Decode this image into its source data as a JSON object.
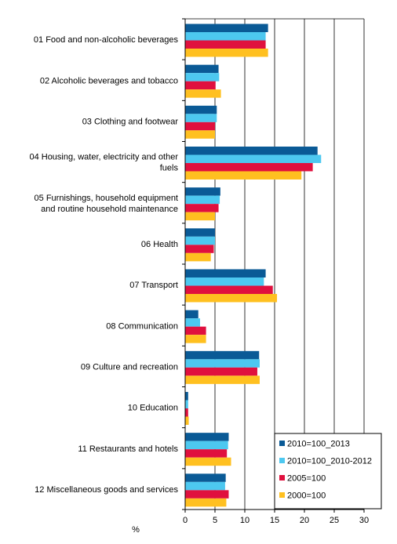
{
  "chart_data": {
    "type": "bar",
    "orientation": "horizontal",
    "title": "",
    "xlabel": "%",
    "ylabel": "",
    "xlim": [
      0,
      30
    ],
    "xticks": [
      "0",
      "5",
      "10",
      "15",
      "20",
      "25",
      "30"
    ],
    "grid": true,
    "legend_position": "bottom-right",
    "categories": [
      "01 Food and non-alcoholic beverages",
      "02 Alcoholic beverages and tobacco",
      "03 Clothing and footwear",
      "04 Housing, water, electricity and other fuels",
      "05 Furnishings, household equipment and routine household maintenance",
      "06 Health",
      "07 Transport",
      "08 Communication",
      "09 Culture and recreation",
      "10 Education",
      "11 Restaurants and hotels",
      "12 Miscellaneous goods and services"
    ],
    "category_lines": [
      [
        "01 Food and non-alcoholic beverages"
      ],
      [
        "02 Alcoholic beverages and tobacco"
      ],
      [
        "03 Clothing and footwear"
      ],
      [
        "04 Housing, water, electricity and other",
        "fuels"
      ],
      [
        "05 Furnishings, household equipment",
        "and routine household maintenance"
      ],
      [
        "06 Health"
      ],
      [
        "07 Transport"
      ],
      [
        "08 Communication"
      ],
      [
        "09 Culture and recreation"
      ],
      [
        "10 Education"
      ],
      [
        "11 Restaurants and hotels"
      ],
      [
        "12 Miscellaneous goods and services"
      ]
    ],
    "series": [
      {
        "name": "2010=100_2013",
        "color": "#0a5a96",
        "values": [
          13.9,
          5.6,
          5.3,
          22.2,
          5.9,
          5.0,
          13.5,
          2.2,
          12.4,
          0.5,
          7.3,
          6.8
        ]
      },
      {
        "name": "2010=100_2010-2012",
        "color": "#4dc8f0",
        "values": [
          13.5,
          5.7,
          5.3,
          22.8,
          5.8,
          5.0,
          13.2,
          2.5,
          12.5,
          0.5,
          7.2,
          6.7
        ]
      },
      {
        "name": "2005=100",
        "color": "#e0103e",
        "values": [
          13.5,
          5.1,
          5.0,
          21.4,
          5.6,
          4.8,
          14.7,
          3.5,
          12.1,
          0.5,
          7.0,
          7.3
        ]
      },
      {
        "name": "2000=100",
        "color": "#ffc020",
        "values": [
          13.9,
          6.0,
          5.0,
          19.5,
          5.0,
          4.3,
          15.4,
          3.5,
          12.5,
          0.6,
          7.7,
          6.9
        ]
      }
    ]
  }
}
